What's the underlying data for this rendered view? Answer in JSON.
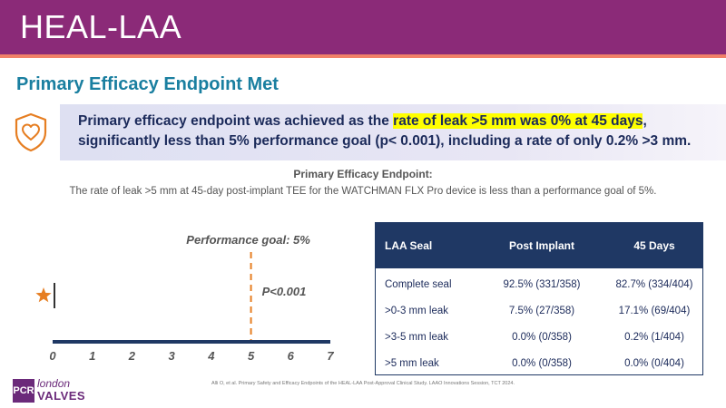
{
  "header": {
    "title": "HEAL-LAA"
  },
  "subtitle": "Primary Efficacy Endpoint Met",
  "banner": {
    "icon": "shield-heart-icon",
    "text_before": "Primary efficacy endpoint was achieved as the ",
    "text_highlight": "rate of leak >5 mm was 0% at 45 days",
    "text_after": ", significantly less than 5% performance goal (p< 0.001), including a rate of only 0.2% >3 mm."
  },
  "efficacy": {
    "title": "Primary Efficacy Endpoint:",
    "description": "The rate of leak >5 mm at 45-day post-implant TEE for the WATCHMAN FLX Pro device is less than a performance goal of 5%."
  },
  "chart_data": {
    "type": "scatter",
    "x_ticks": [
      "0",
      "1",
      "2",
      "3",
      "4",
      "5",
      "6",
      "7"
    ],
    "xlim": [
      0,
      7
    ],
    "observed_point": {
      "x": 0,
      "marker": "star"
    },
    "performance_goal": {
      "x": 5,
      "label": "Performance goal: 5%"
    },
    "p_value_label": "P<0.001",
    "colors": {
      "axis": "#1f3864",
      "goal_line": "#e67e22",
      "star": "#e67e22",
      "labels": "#555555"
    }
  },
  "table": {
    "headers": [
      "LAA Seal",
      "Post Implant",
      "45 Days"
    ],
    "rows": [
      [
        "Complete seal",
        "92.5% (331/358)",
        "82.7% (334/404)"
      ],
      [
        ">0-3 mm leak",
        "7.5% (27/358)",
        "17.1% (69/404)"
      ],
      [
        ">3-5 mm leak",
        "0.0% (0/358)",
        "0.2% (1/404)"
      ],
      [
        ">5 mm leak",
        "0.0% (0/358)",
        "0.0% (0/404)"
      ]
    ]
  },
  "citation": "Alli O, et al. Primary Safety and Efficacy Endpoints of the HEAL-LAA Post-Approval Clinical Study. LAAO Innovations Session, TCT 2024.",
  "logo": {
    "pcr": "PCR",
    "london": "london",
    "valves": "VALVES"
  },
  "colors": {
    "header": "#8b2a78",
    "stripe": "#f08068",
    "subtitle": "#1a7fa0",
    "navy": "#1f3864",
    "highlight": "#ffff00"
  }
}
